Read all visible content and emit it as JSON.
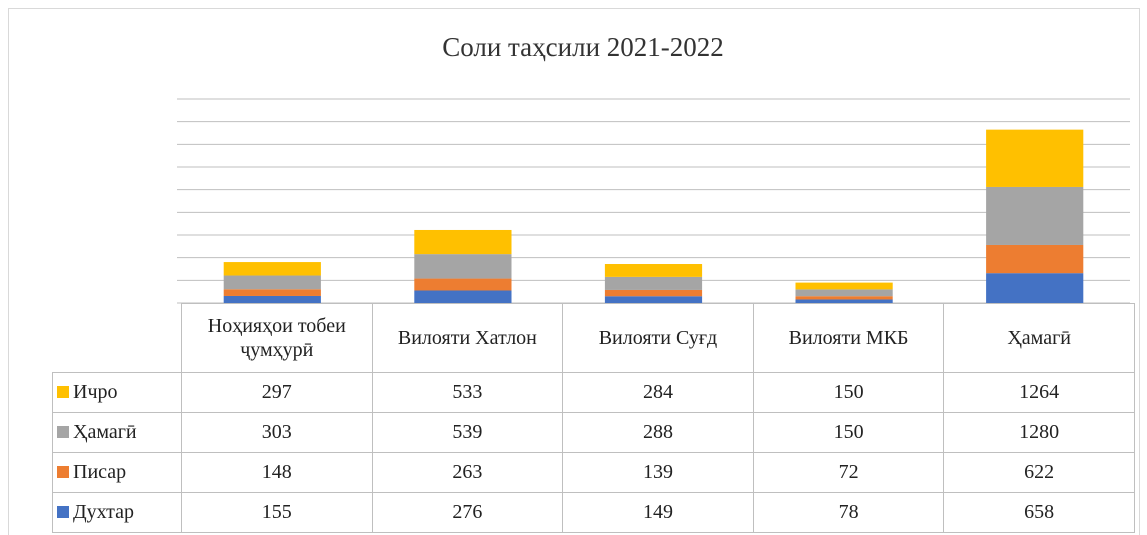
{
  "chart_data": {
    "type": "stacked_bar",
    "title": "Соли таҳсили 2021-2022",
    "categories": [
      "Ноҳияҳои тобеи ҷумҳурӣ",
      "Вилояти Хатлон",
      "Вилояти Суғд",
      "Вилояти МКБ",
      "Ҳамагӣ"
    ],
    "series": [
      {
        "name": "Духтар",
        "color": "#4472c4",
        "values": [
          155,
          276,
          149,
          78,
          658
        ]
      },
      {
        "name": "Писар",
        "color": "#ed7d31",
        "values": [
          148,
          263,
          139,
          72,
          622
        ]
      },
      {
        "name": "Ҳамагӣ",
        "color": "#a5a5a5",
        "values": [
          303,
          539,
          288,
          150,
          1280
        ]
      },
      {
        "name": "Ичро",
        "color": "#ffc000",
        "values": [
          297,
          533,
          284,
          150,
          1264
        ]
      }
    ],
    "ylim": [
      0,
      4500
    ],
    "yticks": [
      0,
      500,
      1000,
      1500,
      2000,
      2500,
      3000,
      3500,
      4000,
      4500
    ],
    "grid": true
  }
}
